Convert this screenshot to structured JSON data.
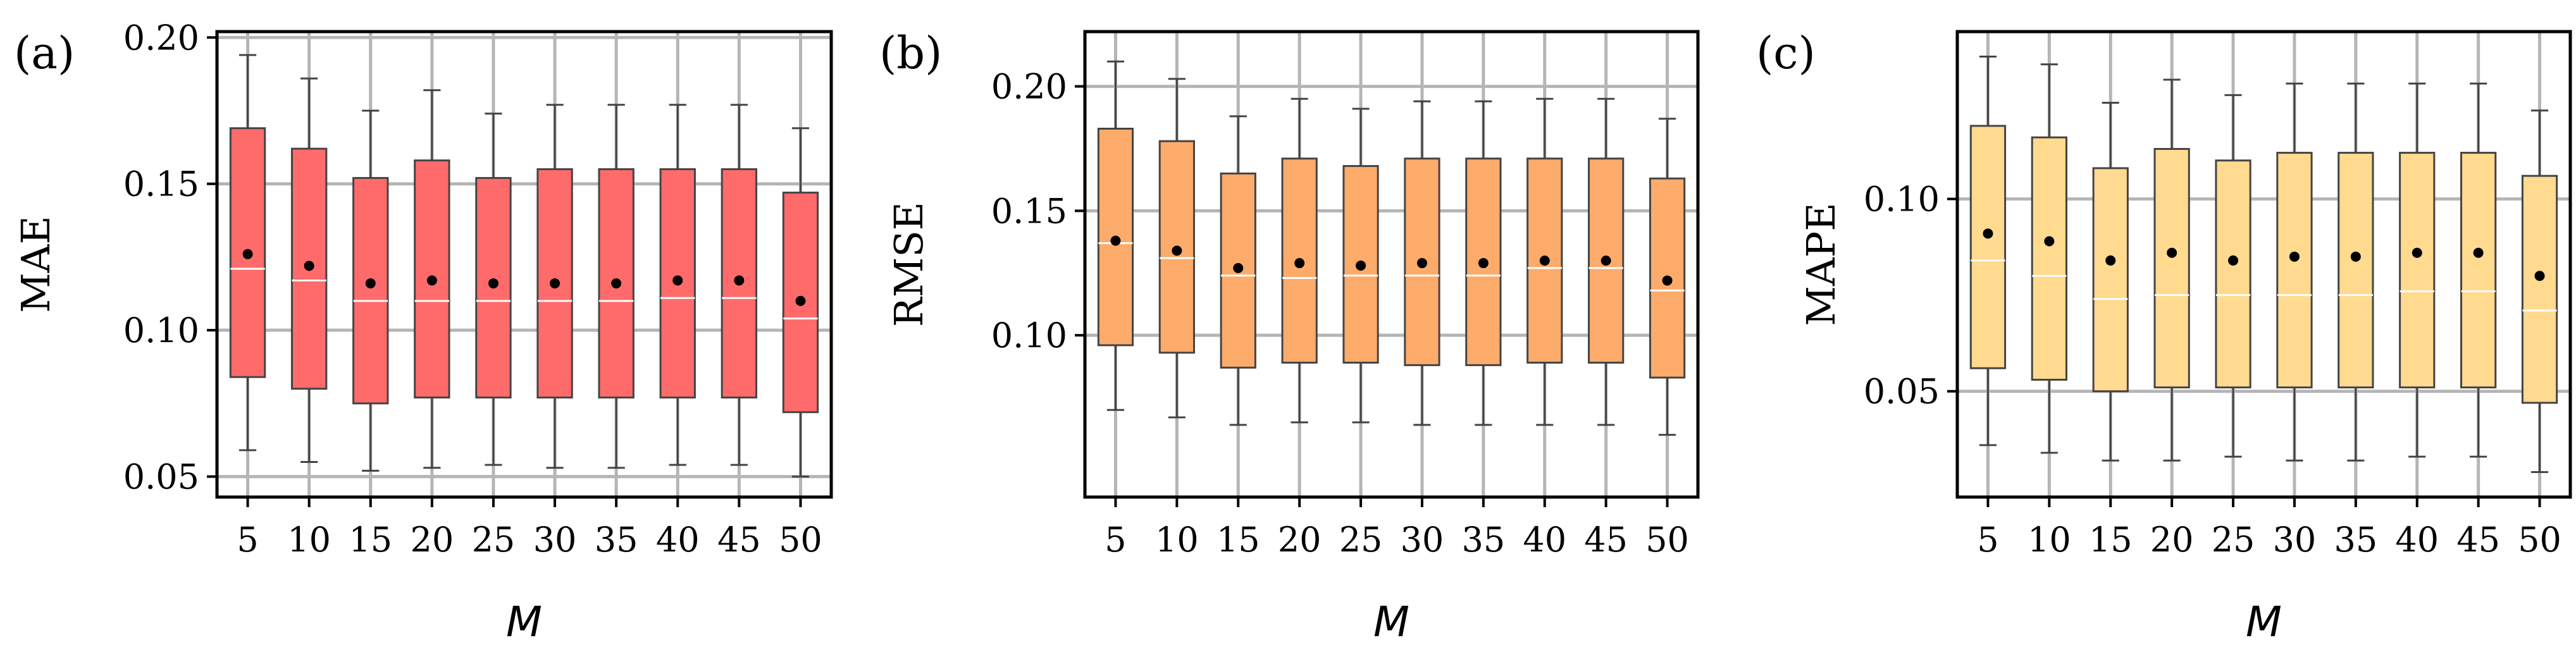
{
  "chart_data": [
    {
      "type": "box",
      "panel_label": "(a)",
      "xlabel": "M",
      "ylabel": "MAE",
      "categories": [
        "5",
        "10",
        "15",
        "20",
        "25",
        "30",
        "35",
        "40",
        "45",
        "50"
      ],
      "ylim": [
        0.043,
        0.202
      ],
      "yticks": [
        "0.05",
        "0.10",
        "0.15",
        "0.20"
      ],
      "grid": true,
      "box_color": "#ff6b6b",
      "boxes": [
        {
          "whisker_low": 0.059,
          "q1": 0.084,
          "median": 0.121,
          "mean": 0.126,
          "q3": 0.169,
          "whisker_high": 0.194
        },
        {
          "whisker_low": 0.055,
          "q1": 0.08,
          "median": 0.117,
          "mean": 0.122,
          "q3": 0.162,
          "whisker_high": 0.186
        },
        {
          "whisker_low": 0.052,
          "q1": 0.075,
          "median": 0.11,
          "mean": 0.116,
          "q3": 0.152,
          "whisker_high": 0.175
        },
        {
          "whisker_low": 0.053,
          "q1": 0.077,
          "median": 0.11,
          "mean": 0.117,
          "q3": 0.158,
          "whisker_high": 0.182
        },
        {
          "whisker_low": 0.054,
          "q1": 0.077,
          "median": 0.11,
          "mean": 0.116,
          "q3": 0.152,
          "whisker_high": 0.174
        },
        {
          "whisker_low": 0.053,
          "q1": 0.077,
          "median": 0.11,
          "mean": 0.116,
          "q3": 0.155,
          "whisker_high": 0.177
        },
        {
          "whisker_low": 0.053,
          "q1": 0.077,
          "median": 0.11,
          "mean": 0.116,
          "q3": 0.155,
          "whisker_high": 0.177
        },
        {
          "whisker_low": 0.054,
          "q1": 0.077,
          "median": 0.111,
          "mean": 0.117,
          "q3": 0.155,
          "whisker_high": 0.177
        },
        {
          "whisker_low": 0.054,
          "q1": 0.077,
          "median": 0.111,
          "mean": 0.117,
          "q3": 0.155,
          "whisker_high": 0.177
        },
        {
          "whisker_low": 0.05,
          "q1": 0.072,
          "median": 0.104,
          "mean": 0.11,
          "q3": 0.147,
          "whisker_high": 0.169
        }
      ]
    },
    {
      "type": "box",
      "panel_label": "(b)",
      "xlabel": "M",
      "ylabel": "RMSE",
      "categories": [
        "5",
        "10",
        "15",
        "20",
        "25",
        "30",
        "35",
        "40",
        "45",
        "50"
      ],
      "ylim": [
        0.035,
        0.222
      ],
      "yticks": [
        "0.10",
        "0.15",
        "0.20"
      ],
      "grid": true,
      "box_color": "#fdab6b",
      "boxes": [
        {
          "whisker_low": 0.07,
          "q1": 0.096,
          "median": 0.137,
          "mean": 0.138,
          "q3": 0.183,
          "whisker_high": 0.21
        },
        {
          "whisker_low": 0.067,
          "q1": 0.093,
          "median": 0.131,
          "mean": 0.134,
          "q3": 0.178,
          "whisker_high": 0.203
        },
        {
          "whisker_low": 0.064,
          "q1": 0.087,
          "median": 0.124,
          "mean": 0.127,
          "q3": 0.165,
          "whisker_high": 0.188
        },
        {
          "whisker_low": 0.065,
          "q1": 0.089,
          "median": 0.123,
          "mean": 0.129,
          "q3": 0.171,
          "whisker_high": 0.195
        },
        {
          "whisker_low": 0.065,
          "q1": 0.089,
          "median": 0.124,
          "mean": 0.128,
          "q3": 0.168,
          "whisker_high": 0.191
        },
        {
          "whisker_low": 0.064,
          "q1": 0.088,
          "median": 0.124,
          "mean": 0.129,
          "q3": 0.171,
          "whisker_high": 0.194
        },
        {
          "whisker_low": 0.064,
          "q1": 0.088,
          "median": 0.124,
          "mean": 0.129,
          "q3": 0.171,
          "whisker_high": 0.194
        },
        {
          "whisker_low": 0.064,
          "q1": 0.089,
          "median": 0.127,
          "mean": 0.13,
          "q3": 0.171,
          "whisker_high": 0.195
        },
        {
          "whisker_low": 0.064,
          "q1": 0.089,
          "median": 0.127,
          "mean": 0.13,
          "q3": 0.171,
          "whisker_high": 0.195
        },
        {
          "whisker_low": 0.06,
          "q1": 0.083,
          "median": 0.118,
          "mean": 0.122,
          "q3": 0.163,
          "whisker_high": 0.187
        }
      ]
    },
    {
      "type": "box",
      "panel_label": "(c)",
      "xlabel": "M",
      "ylabel": "MAPE",
      "categories": [
        "5",
        "10",
        "15",
        "20",
        "25",
        "30",
        "35",
        "40",
        "45",
        "50"
      ],
      "ylim": [
        0.0225,
        0.1435
      ],
      "yticks": [
        "0.05",
        "0.10"
      ],
      "grid": true,
      "box_color": "#ffda8f",
      "boxes": [
        {
          "whisker_low": 0.036,
          "q1": 0.056,
          "median": 0.084,
          "mean": 0.091,
          "q3": 0.119,
          "whisker_high": 0.137
        },
        {
          "whisker_low": 0.034,
          "q1": 0.053,
          "median": 0.08,
          "mean": 0.089,
          "q3": 0.116,
          "whisker_high": 0.135
        },
        {
          "whisker_low": 0.032,
          "q1": 0.05,
          "median": 0.074,
          "mean": 0.084,
          "q3": 0.108,
          "whisker_high": 0.125
        },
        {
          "whisker_low": 0.032,
          "q1": 0.051,
          "median": 0.075,
          "mean": 0.086,
          "q3": 0.113,
          "whisker_high": 0.131
        },
        {
          "whisker_low": 0.033,
          "q1": 0.051,
          "median": 0.075,
          "mean": 0.084,
          "q3": 0.11,
          "whisker_high": 0.127
        },
        {
          "whisker_low": 0.032,
          "q1": 0.051,
          "median": 0.075,
          "mean": 0.085,
          "q3": 0.112,
          "whisker_high": 0.13
        },
        {
          "whisker_low": 0.032,
          "q1": 0.051,
          "median": 0.075,
          "mean": 0.085,
          "q3": 0.112,
          "whisker_high": 0.13
        },
        {
          "whisker_low": 0.033,
          "q1": 0.051,
          "median": 0.076,
          "mean": 0.086,
          "q3": 0.112,
          "whisker_high": 0.13
        },
        {
          "whisker_low": 0.033,
          "q1": 0.051,
          "median": 0.076,
          "mean": 0.086,
          "q3": 0.112,
          "whisker_high": 0.13
        },
        {
          "whisker_low": 0.029,
          "q1": 0.047,
          "median": 0.071,
          "mean": 0.08,
          "q3": 0.106,
          "whisker_high": 0.123
        }
      ]
    }
  ]
}
